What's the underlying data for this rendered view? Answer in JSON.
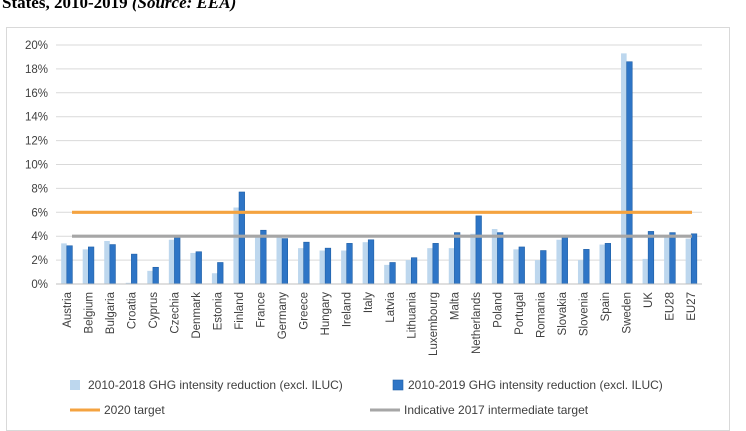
{
  "caption": {
    "text": "States, 2010-2019",
    "source": "(Source: EEA)"
  },
  "chart_data": {
    "type": "bar",
    "title": "",
    "xlabel": "",
    "ylabel": "",
    "ylim": [
      0,
      20
    ],
    "yticks": [
      "0%",
      "2%",
      "4%",
      "6%",
      "8%",
      "10%",
      "12%",
      "14%",
      "16%",
      "18%",
      "20%"
    ],
    "grid": true,
    "legend_position": "bottom",
    "categories": [
      "Austria",
      "Belgium",
      "Bulgaria",
      "Croatia",
      "Cyprus",
      "Czechia",
      "Denmark",
      "Estonia",
      "Finland",
      "France",
      "Germany",
      "Greece",
      "Hungary",
      "Ireland",
      "Italy",
      "Latvia",
      "Lithuania",
      "Luxembourg",
      "Malta",
      "Netherlands",
      "Poland",
      "Portugal",
      "Romania",
      "Slovakia",
      "Slovenia",
      "Spain",
      "Sweden",
      "UK",
      "EU28",
      "EU27"
    ],
    "series": [
      {
        "name": "2010-2018 GHG intensity reduction (excl. ILUC)",
        "color": "#bdd7ee",
        "values": [
          3.4,
          2.9,
          3.6,
          0.1,
          1.1,
          3.7,
          2.6,
          0.9,
          6.4,
          4.0,
          3.9,
          3.0,
          2.8,
          2.8,
          3.5,
          1.6,
          2.0,
          3.0,
          3.0,
          4.2,
          4.6,
          2.9,
          2.0,
          3.7,
          2.0,
          3.3,
          19.3,
          2.1,
          3.9,
          3.8
        ]
      },
      {
        "name": "2010-2019 GHG intensity reduction (excl. ILUC)",
        "color": "#2e75c6",
        "values": [
          3.2,
          3.1,
          3.3,
          2.5,
          1.4,
          3.9,
          2.7,
          1.8,
          7.7,
          4.5,
          3.8,
          3.5,
          3.0,
          3.4,
          3.7,
          1.8,
          2.2,
          3.4,
          4.3,
          5.7,
          4.3,
          3.1,
          2.8,
          3.9,
          2.9,
          3.4,
          18.6,
          4.4,
          4.3,
          4.2
        ]
      }
    ],
    "lines": [
      {
        "name": "2020 target",
        "value": 6,
        "color": "#f4a340"
      },
      {
        "name": "Indicative 2017 intermediate target",
        "value": 4,
        "color": "#a6a6a6"
      }
    ]
  }
}
